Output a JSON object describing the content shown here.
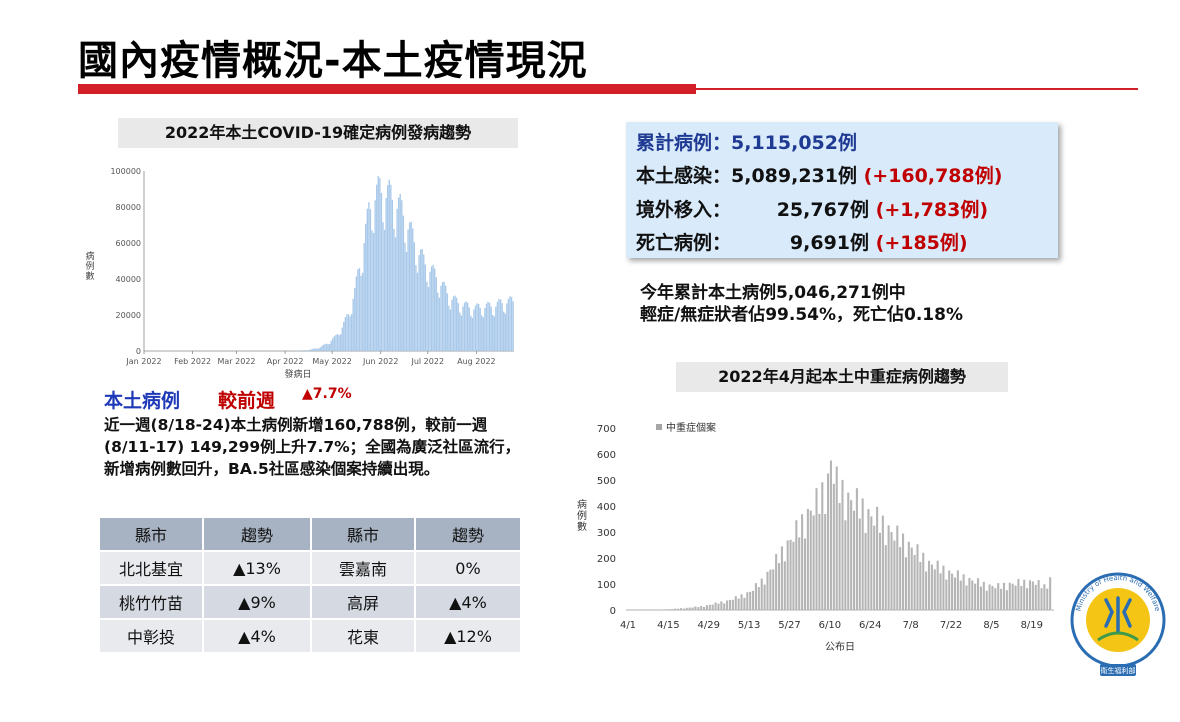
{
  "page": {
    "title": "國內疫情概況-本土疫情現況"
  },
  "chart1_title": "2022年本土COVID-19確定病例發病趨勢",
  "chart2_title": "2022年4月起本土中重症病例趨勢",
  "stats": {
    "line1": "累計病例：5,115,052例",
    "line2_label": "本土感染：5,089,231例",
    "line2_change": "(+160,788例)",
    "line3_label": "境外移入：",
    "line3_value": "25,767例",
    "line3_change": "(+1,783例)",
    "line4_label": "死亡病例：",
    "line4_value": "9,691例",
    "line4_change": "(+185例)"
  },
  "summary": {
    "line1": "今年累計本土病例5,046,271例中",
    "line2": "輕症/無症狀者佔99.54%，死亡佔0.18%"
  },
  "local": {
    "label": "本土病例",
    "compare_label": "較前週",
    "compare_value": "▲7.7%",
    "desc": "近一週(8/18-24)本土病例新增160,788例，較前一週(8/11-17) 149,299例上升7.7%；全國為廣泛社區流行，新增病例數回升，BA.5社區感染個案持續出現。"
  },
  "table": {
    "headers": [
      "縣市",
      "趨勢",
      "縣市",
      "趨勢"
    ],
    "rows": [
      [
        "北北基宜",
        "▲13%",
        "雲嘉南",
        "0%"
      ],
      [
        "桃竹竹苗",
        "▲9%",
        "高屏",
        "▲4%"
      ],
      [
        "中彰投",
        "▲4%",
        "花東",
        "▲12%"
      ]
    ]
  },
  "logo": {
    "ring_text": "Ministry of Health and Welfare",
    "bottom_text": "衛生福利部"
  },
  "colors": {
    "title_red": "#d32028",
    "bar_blue": "#a9c9ea",
    "bar_gray": "#b5b5b5",
    "stat_blue": "#1f3a93",
    "change_red": "#c00000"
  },
  "chart_data": [
    {
      "type": "bar",
      "title": "",
      "xlabel": "發病日",
      "ylabel": "病例數",
      "ylim": [
        0,
        100000
      ],
      "yticks": [
        0,
        20000,
        40000,
        60000,
        80000,
        100000
      ],
      "ytick_labels": [
        "0",
        "20000",
        "40000",
        "60000",
        "80000",
        "100000"
      ],
      "xtick_labels": [
        "Jan 2022",
        "Feb 2022",
        "Mar 2022",
        "Apr 2022",
        "May 2022",
        "Jun 2022",
        "Jul 2022",
        "Aug 2022"
      ],
      "xtick_days": [
        0,
        31,
        59,
        90,
        120,
        151,
        181,
        212
      ],
      "x_start": "2022-01-01",
      "x_end": "2022-08-24",
      "shape_points": [
        [
          0,
          0
        ],
        [
          85,
          0
        ],
        [
          95,
          100
        ],
        [
          105,
          600
        ],
        [
          112,
          2000
        ],
        [
          118,
          5000
        ],
        [
          122,
          8000
        ],
        [
          126,
          13000
        ],
        [
          130,
          20000
        ],
        [
          134,
          32000
        ],
        [
          137,
          45000
        ],
        [
          140,
          60000
        ],
        [
          143,
          74000
        ],
        [
          146,
          83000
        ],
        [
          150,
          86000
        ],
        [
          154,
          85000
        ],
        [
          158,
          82000
        ],
        [
          162,
          78000
        ],
        [
          166,
          72000
        ],
        [
          170,
          63000
        ],
        [
          174,
          55000
        ],
        [
          178,
          48000
        ],
        [
          182,
          44000
        ],
        [
          186,
          40000
        ],
        [
          190,
          35000
        ],
        [
          194,
          30000
        ],
        [
          198,
          27000
        ],
        [
          202,
          25000
        ],
        [
          206,
          24000
        ],
        [
          210,
          23000
        ],
        [
          214,
          23500
        ],
        [
          218,
          24000
        ],
        [
          222,
          24000
        ],
        [
          228,
          26000
        ],
        [
          235,
          27000
        ]
      ],
      "weekly_amplitude": 0.14,
      "grid": false,
      "legend": "none"
    },
    {
      "type": "bar",
      "title": "",
      "xlabel": "公布日",
      "ylabel": "病例數",
      "series": [
        {
          "name": "中重症個案"
        }
      ],
      "ylim": [
        0,
        700
      ],
      "yticks": [
        0,
        100,
        200,
        300,
        400,
        500,
        600,
        700
      ],
      "xtick_labels": [
        "4/1",
        "4/15",
        "4/29",
        "5/13",
        "5/27",
        "6/10",
        "6/24",
        "7/8",
        "7/22",
        "8/5",
        "8/19"
      ],
      "xtick_days": [
        0,
        14,
        28,
        42,
        56,
        70,
        84,
        98,
        112,
        126,
        140
      ],
      "x_start": "2022-04-01",
      "x_end": "2022-08-25",
      "shape_points": [
        [
          0,
          0
        ],
        [
          8,
          0
        ],
        [
          14,
          3
        ],
        [
          20,
          8
        ],
        [
          26,
          15
        ],
        [
          30,
          25
        ],
        [
          34,
          35
        ],
        [
          38,
          50
        ],
        [
          42,
          70
        ],
        [
          46,
          110
        ],
        [
          50,
          170
        ],
        [
          54,
          240
        ],
        [
          58,
          300
        ],
        [
          62,
          370
        ],
        [
          66,
          420
        ],
        [
          69,
          500
        ],
        [
          70,
          575
        ],
        [
          72,
          480
        ],
        [
          76,
          430
        ],
        [
          80,
          400
        ],
        [
          84,
          360
        ],
        [
          88,
          330
        ],
        [
          92,
          290
        ],
        [
          96,
          260
        ],
        [
          100,
          220
        ],
        [
          104,
          180
        ],
        [
          108,
          160
        ],
        [
          112,
          140
        ],
        [
          116,
          125
        ],
        [
          120,
          110
        ],
        [
          124,
          95
        ],
        [
          128,
          90
        ],
        [
          132,
          100
        ],
        [
          136,
          105
        ],
        [
          140,
          110
        ],
        [
          144,
          90
        ],
        [
          146,
          120
        ]
      ],
      "grid": false,
      "legend": "top-left"
    }
  ]
}
